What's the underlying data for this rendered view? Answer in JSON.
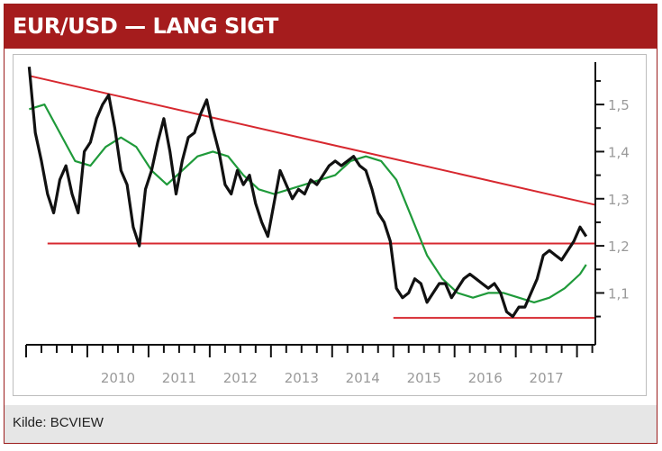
{
  "title": "EUR/USD — LANG SIGT",
  "source": "Kilde: BCVIEW",
  "colors": {
    "header": "#a51c1d",
    "price": "#111111",
    "ma": "#1f9a3a",
    "levels": "#d7282f",
    "trend": "#d7282f"
  },
  "chart_data": {
    "type": "line",
    "title": "EUR/USD — LANG SIGT",
    "xlabel": "",
    "ylabel": "",
    "x_ticks": [
      "2010",
      "2011",
      "2012",
      "2013",
      "2014",
      "2015",
      "2016",
      "2017"
    ],
    "y_ticks": [
      "1,1",
      "1,2",
      "1,3",
      "1,4",
      "1,5"
    ],
    "xlim": [
      2009.0,
      2018.3
    ],
    "ylim": [
      0.99,
      1.59
    ],
    "legend": "none",
    "series": [
      {
        "role": "price",
        "x": [
          2009.05,
          2009.15,
          2009.25,
          2009.35,
          2009.45,
          2009.55,
          2009.65,
          2009.75,
          2009.85,
          2009.95,
          2010.05,
          2010.15,
          2010.25,
          2010.35,
          2010.45,
          2010.55,
          2010.65,
          2010.75,
          2010.85,
          2010.95,
          2011.05,
          2011.15,
          2011.25,
          2011.35,
          2011.45,
          2011.55,
          2011.65,
          2011.75,
          2011.85,
          2011.95,
          2012.05,
          2012.15,
          2012.25,
          2012.35,
          2012.45,
          2012.55,
          2012.65,
          2012.75,
          2012.85,
          2012.95,
          2013.05,
          2013.15,
          2013.25,
          2013.35,
          2013.45,
          2013.55,
          2013.65,
          2013.75,
          2013.85,
          2013.95,
          2014.05,
          2014.15,
          2014.25,
          2014.35,
          2014.45,
          2014.55,
          2014.65,
          2014.75,
          2014.85,
          2014.95,
          2015.05,
          2015.15,
          2015.25,
          2015.35,
          2015.45,
          2015.55,
          2015.65,
          2015.75,
          2015.85,
          2015.95,
          2016.05,
          2016.15,
          2016.25,
          2016.35,
          2016.45,
          2016.55,
          2016.65,
          2016.75,
          2016.85,
          2016.95,
          2017.05,
          2017.15,
          2017.25,
          2017.35,
          2017.45,
          2017.55,
          2017.65,
          2017.75,
          2017.85,
          2017.95,
          2018.05,
          2018.15
        ],
        "values": [
          1.58,
          1.44,
          1.38,
          1.31,
          1.27,
          1.34,
          1.37,
          1.31,
          1.27,
          1.4,
          1.42,
          1.47,
          1.5,
          1.52,
          1.45,
          1.36,
          1.33,
          1.24,
          1.2,
          1.32,
          1.36,
          1.42,
          1.47,
          1.4,
          1.31,
          1.38,
          1.43,
          1.44,
          1.48,
          1.51,
          1.45,
          1.4,
          1.33,
          1.31,
          1.36,
          1.33,
          1.35,
          1.29,
          1.25,
          1.22,
          1.29,
          1.36,
          1.33,
          1.3,
          1.32,
          1.31,
          1.34,
          1.33,
          1.35,
          1.37,
          1.38,
          1.37,
          1.38,
          1.39,
          1.37,
          1.36,
          1.32,
          1.27,
          1.25,
          1.21,
          1.11,
          1.09,
          1.1,
          1.13,
          1.12,
          1.08,
          1.1,
          1.12,
          1.12,
          1.09,
          1.11,
          1.13,
          1.14,
          1.13,
          1.12,
          1.11,
          1.12,
          1.1,
          1.06,
          1.05,
          1.07,
          1.07,
          1.1,
          1.13,
          1.18,
          1.19,
          1.18,
          1.17,
          1.19,
          1.21,
          1.24,
          1.22
        ]
      },
      {
        "role": "moving-average",
        "x": [
          2009.05,
          2009.3,
          2009.55,
          2009.8,
          2010.05,
          2010.3,
          2010.55,
          2010.8,
          2011.05,
          2011.3,
          2011.55,
          2011.8,
          2012.05,
          2012.3,
          2012.55,
          2012.8,
          2013.05,
          2013.3,
          2013.55,
          2013.8,
          2014.05,
          2014.3,
          2014.55,
          2014.8,
          2015.05,
          2015.3,
          2015.55,
          2015.8,
          2016.05,
          2016.3,
          2016.55,
          2016.8,
          2017.05,
          2017.3,
          2017.55,
          2017.8,
          2018.05,
          2018.15
        ],
        "values": [
          1.49,
          1.5,
          1.44,
          1.38,
          1.37,
          1.41,
          1.43,
          1.41,
          1.36,
          1.33,
          1.36,
          1.39,
          1.4,
          1.39,
          1.35,
          1.32,
          1.31,
          1.32,
          1.33,
          1.34,
          1.35,
          1.38,
          1.39,
          1.38,
          1.34,
          1.26,
          1.18,
          1.13,
          1.1,
          1.09,
          1.1,
          1.1,
          1.09,
          1.08,
          1.09,
          1.11,
          1.14,
          1.16
        ]
      }
    ],
    "reference_lines": [
      {
        "type": "horizontal",
        "y": 1.205,
        "x": [
          2009.35,
          2018.3
        ]
      },
      {
        "type": "horizontal",
        "y": 1.047,
        "x": [
          2015.0,
          2018.3
        ]
      },
      {
        "type": "trend",
        "x": [
          2009.05,
          2018.3
        ],
        "y": [
          1.561,
          1.287
        ]
      }
    ]
  }
}
